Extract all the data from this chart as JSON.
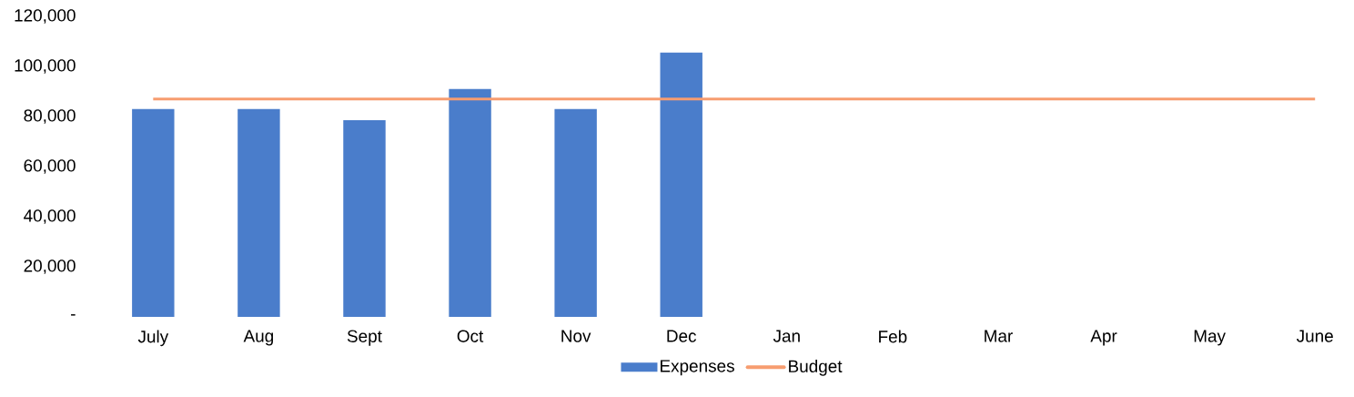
{
  "chart_data": {
    "type": "bar",
    "categories": [
      "July",
      "Aug",
      "Sept",
      "Oct",
      "Nov",
      "Dec",
      "Jan",
      "Feb",
      "Mar",
      "Apr",
      "May",
      "June"
    ],
    "series": [
      {
        "name": "Expenses",
        "color": "#4a7dcb",
        "values": [
          83000,
          83000,
          78500,
          91000,
          83000,
          105500,
          null,
          null,
          null,
          null,
          null,
          null
        ]
      },
      {
        "name": "Budget",
        "type": "line",
        "color": "#f79d70",
        "values": [
          87000,
          87000,
          87000,
          87000,
          87000,
          87000,
          87000,
          87000,
          87000,
          87000,
          87000,
          87000
        ]
      }
    ],
    "ylim": [
      0,
      120000
    ],
    "yticks": [
      {
        "value": 0,
        "label": "-"
      },
      {
        "value": 20000,
        "label": "20,000"
      },
      {
        "value": 40000,
        "label": "40,000"
      },
      {
        "value": 60000,
        "label": "60,000"
      },
      {
        "value": 80000,
        "label": "80,000"
      },
      {
        "value": 100000,
        "label": "100,000"
      },
      {
        "value": 120000,
        "label": "120,000"
      }
    ],
    "legend": "bottom",
    "grid": false,
    "marker": "none"
  }
}
